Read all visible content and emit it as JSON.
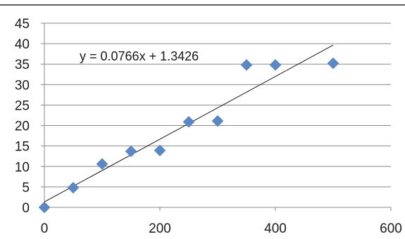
{
  "chart_data": {
    "type": "scatter",
    "title": "",
    "xlabel": "",
    "ylabel": "",
    "xlim": [
      0,
      600
    ],
    "ylim": [
      0,
      45
    ],
    "x_ticks": [
      0,
      200,
      400,
      600
    ],
    "y_ticks": [
      0,
      5,
      10,
      15,
      20,
      25,
      30,
      35,
      40,
      45
    ],
    "grid": "horizontal",
    "legend": "none",
    "series": [
      {
        "marker": "diamond",
        "color": "#5b87c5",
        "points": [
          {
            "x": 0,
            "y": 0
          },
          {
            "x": 50,
            "y": 4.8
          },
          {
            "x": 100,
            "y": 10.6
          },
          {
            "x": 150,
            "y": 13.7
          },
          {
            "x": 200,
            "y": 13.9
          },
          {
            "x": 250,
            "y": 20.9
          },
          {
            "x": 300,
            "y": 21.1
          },
          {
            "x": 350,
            "y": 34.8
          },
          {
            "x": 400,
            "y": 34.8
          },
          {
            "x": 500,
            "y": 35.2
          }
        ]
      }
    ],
    "trendline": {
      "type": "linear",
      "slope": 0.0766,
      "intercept": 1.3426,
      "x_range": [
        0,
        500
      ],
      "color": "#1a1a1a",
      "equation_label": "y = 0.0766x + 1.3426"
    }
  }
}
